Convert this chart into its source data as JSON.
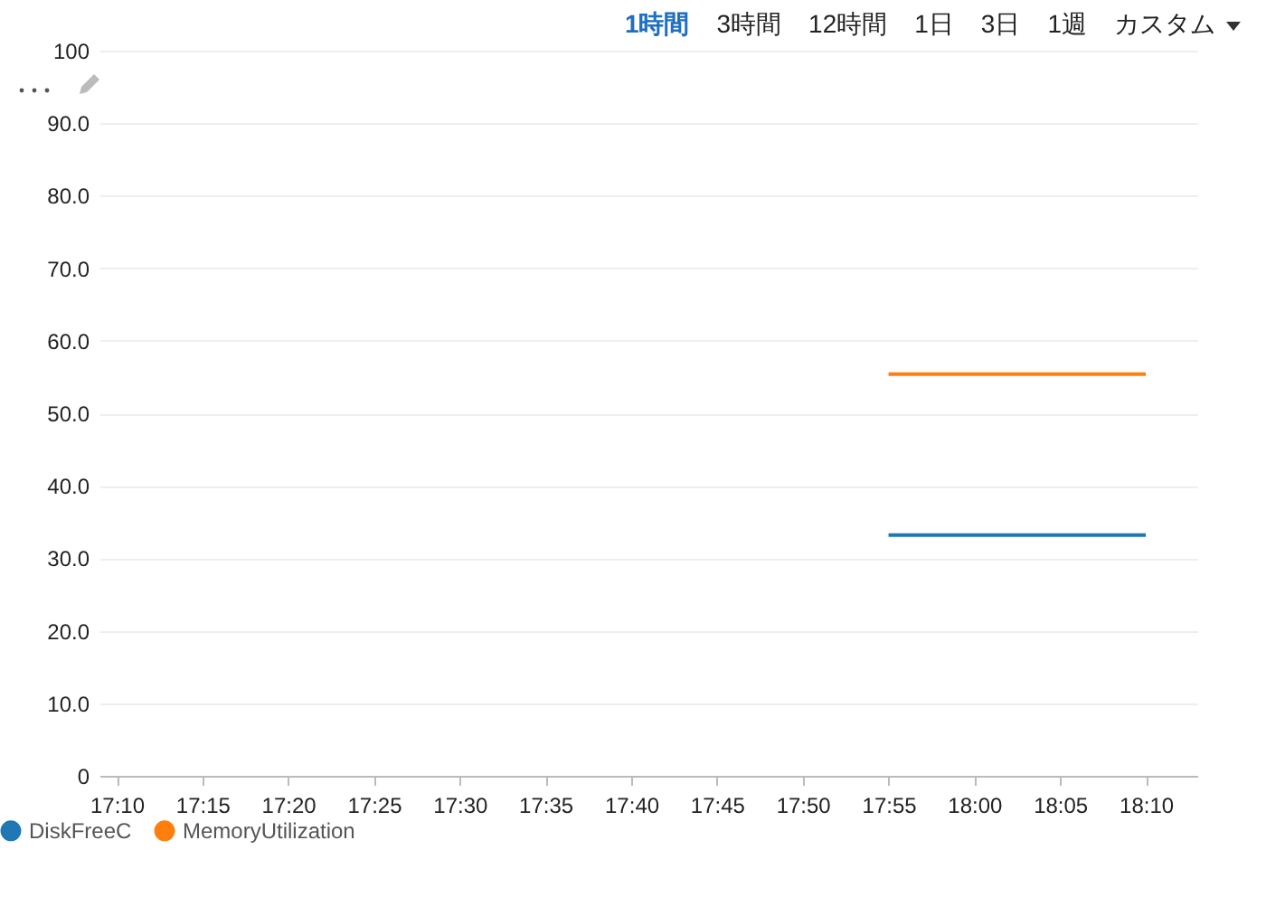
{
  "chart_data": {
    "type": "line",
    "xlim": [
      17.15,
      18.2167
    ],
    "xticks": [
      {
        "value": 17.1667,
        "label": "17:10"
      },
      {
        "value": 17.25,
        "label": "17:15"
      },
      {
        "value": 17.3333,
        "label": "17:20"
      },
      {
        "value": 17.4167,
        "label": "17:25"
      },
      {
        "value": 17.5,
        "label": "17:30"
      },
      {
        "value": 17.5833,
        "label": "17:35"
      },
      {
        "value": 17.6667,
        "label": "17:40"
      },
      {
        "value": 17.75,
        "label": "17:45"
      },
      {
        "value": 17.8333,
        "label": "17:50"
      },
      {
        "value": 17.9167,
        "label": "17:55"
      },
      {
        "value": 18.0,
        "label": "18:00"
      },
      {
        "value": 18.0833,
        "label": "18:05"
      },
      {
        "value": 18.1667,
        "label": "18:10"
      }
    ],
    "ylim": [
      0,
      100
    ],
    "yticks": [
      0,
      {
        "value": 10,
        "label": "10.0"
      },
      {
        "value": 20,
        "label": "20.0"
      },
      {
        "value": 30,
        "label": "30.0"
      },
      {
        "value": 40,
        "label": "40.0"
      },
      {
        "value": 50,
        "label": "50.0"
      },
      {
        "value": 60,
        "label": "60.0"
      },
      {
        "value": 70,
        "label": "70.0"
      },
      {
        "value": 80,
        "label": "80.0"
      },
      {
        "value": 90,
        "label": "90.0"
      },
      100
    ],
    "x": [
      17.9167,
      18.1667
    ],
    "series": [
      {
        "name": "DiskFreeC",
        "color": "#1f77b4",
        "values": [
          33.2,
          33.2
        ]
      },
      {
        "name": "MemoryUtilization",
        "color": "#ff7f0e",
        "values": [
          55.4,
          55.4
        ]
      }
    ],
    "annotations": [
      "1時間",
      "3時間",
      "12時間",
      "1日",
      "3日",
      "1週",
      "カスタム"
    ],
    "grid": "y",
    "legend": "bottom left",
    "marker": "none",
    "line_style": "solid"
  }
}
